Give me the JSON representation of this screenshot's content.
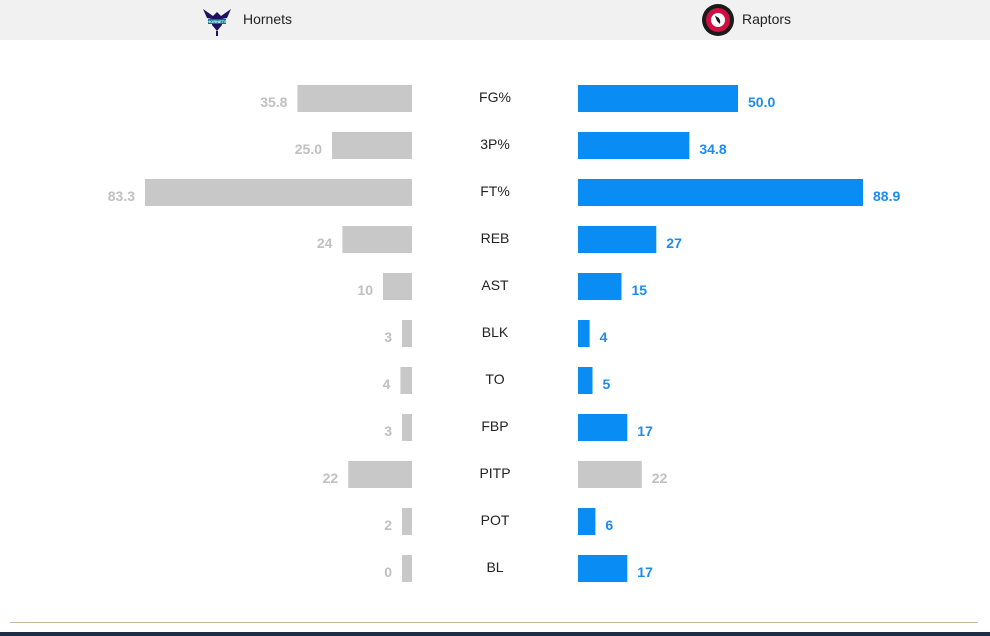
{
  "teams": {
    "away": {
      "name": "Hornets",
      "logo": "hornets-logo"
    },
    "home": {
      "name": "Raptors",
      "logo": "raptors-logo"
    }
  },
  "colors": {
    "leading": "#0a8cf5",
    "trailing": "#c8c8c8",
    "leading_text": "#1a8cf0",
    "trailing_text": "#c0c0c0",
    "category_text": "#222222",
    "header_bg": "#f1f1f1"
  },
  "chart_data": {
    "type": "bar",
    "orientation": "horizontal-mirrored",
    "categories": [
      "FG%",
      "3P%",
      "FT%",
      "REB",
      "AST",
      "BLK",
      "TO",
      "FBP",
      "PITP",
      "POT",
      "BL"
    ],
    "series": [
      {
        "name": "Hornets",
        "side": "left",
        "values": [
          35.8,
          25.0,
          83.3,
          24,
          10,
          3,
          4,
          3,
          22,
          2,
          0
        ],
        "labels": [
          "35.8",
          "25.0",
          "83.3",
          "24",
          "10",
          "3",
          "4",
          "3",
          "22",
          "2",
          "0"
        ]
      },
      {
        "name": "Raptors",
        "side": "right",
        "values": [
          50.0,
          34.8,
          88.9,
          27,
          15,
          4,
          5,
          17,
          22,
          6,
          17
        ],
        "labels": [
          "50.0",
          "34.8",
          "88.9",
          "27",
          "15",
          "4",
          "5",
          "17",
          "22",
          "6",
          "17"
        ]
      }
    ],
    "grid": false,
    "legend": "top"
  }
}
